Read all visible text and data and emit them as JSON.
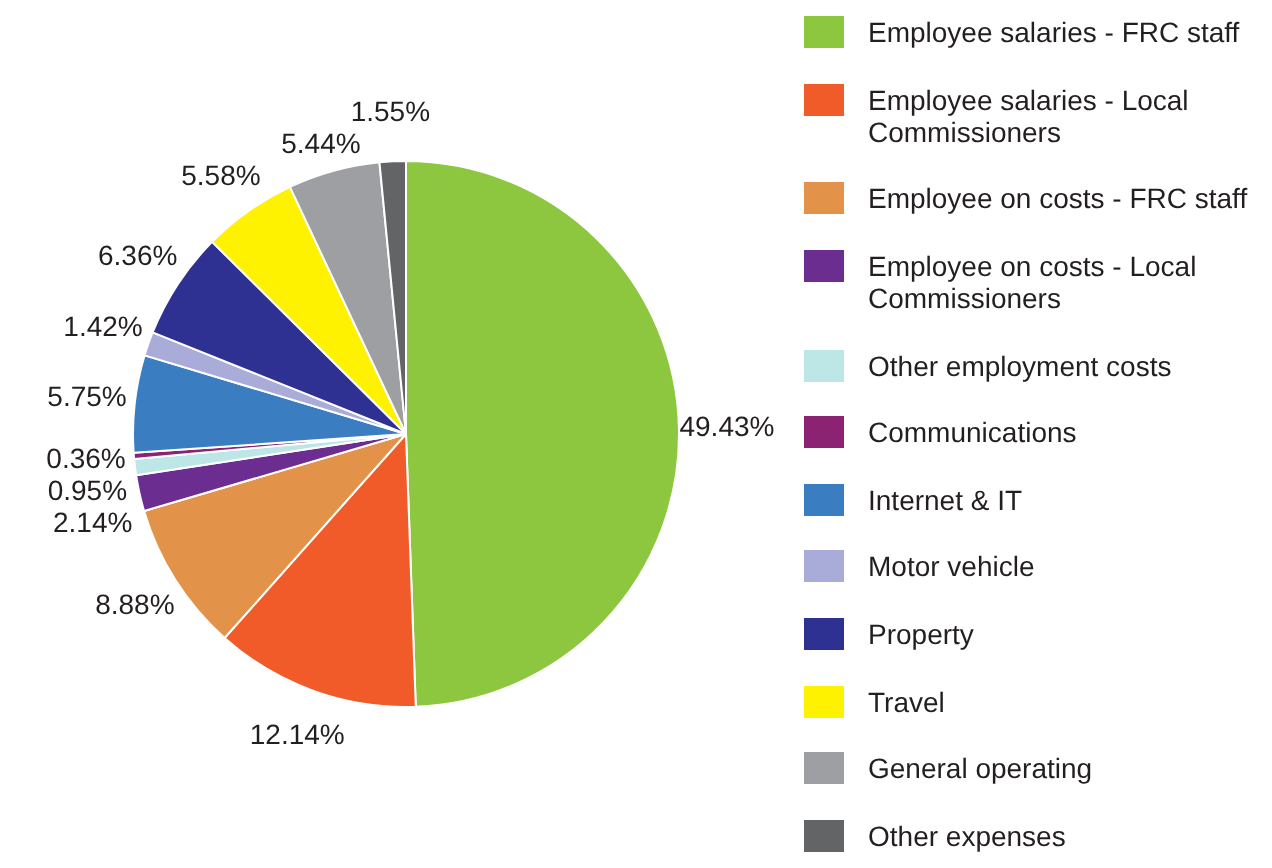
{
  "chart_data": {
    "type": "pie",
    "legend": "right",
    "categories": [
      "Employee salaries - FRC staff",
      "Employee salaries - Local Commissioners",
      "Employee on costs - FRC staff",
      "Employee on costs - Local Commissioners",
      "Other employment costs",
      "Communications",
      "Internet & IT",
      "Motor vehicle",
      "Property",
      "Travel",
      "General operating",
      "Other expenses"
    ],
    "values": [
      49.43,
      12.14,
      8.88,
      2.14,
      0.95,
      0.36,
      5.75,
      1.42,
      6.36,
      5.58,
      5.44,
      1.55
    ],
    "value_labels": [
      "49.43%",
      "12.14%",
      "8.88%",
      "2.14%",
      "0.95%",
      "0.36%",
      "5.75%",
      "1.42%",
      "6.36%",
      "5.58%",
      "5.44%",
      "1.55%"
    ],
    "colors": [
      "#8dc63f",
      "#f15a29",
      "#e3924a",
      "#6b2d8f",
      "#bde6e6",
      "#8b2272",
      "#3a7dc1",
      "#a9acd9",
      "#2e3192",
      "#fff200",
      "#9d9fa2",
      "#636466"
    ]
  }
}
